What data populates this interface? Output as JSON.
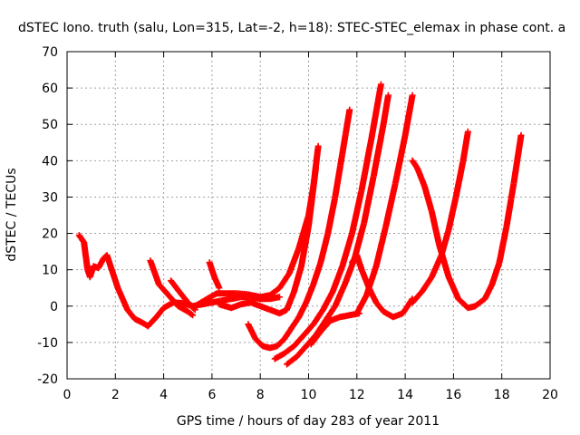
{
  "chart_data": {
    "type": "scatter",
    "title": "dSTEC Iono. truth (salu, Lon=315, Lat=-2, h=18): STEC-STEC_elemax in phase cont. a",
    "xlabel": "GPS time / hours of day 283 of year 2011",
    "ylabel": "dSTEC  / TECUs",
    "xlim": [
      0,
      20
    ],
    "ylim": [
      -20,
      70
    ],
    "xticks": [
      0,
      2,
      4,
      6,
      8,
      10,
      12,
      14,
      16,
      18,
      20
    ],
    "yticks": [
      -20,
      -10,
      0,
      10,
      20,
      30,
      40,
      50,
      60,
      70
    ],
    "grid": true,
    "marker": "plus",
    "color": "#ff0000",
    "series": [
      {
        "x": [
          0.5,
          0.7,
          0.85,
          0.95,
          1.1,
          1.3,
          1.5,
          1.65,
          1.8,
          2.1,
          2.5,
          2.8,
          3.1,
          3.35
        ],
        "y": [
          19.5,
          17.5,
          10,
          8,
          11,
          10.5,
          13,
          14,
          11,
          5,
          -1,
          -3.5,
          -4.5,
          -5.5
        ]
      },
      {
        "x": [
          3.35,
          3.7,
          4.0,
          4.4,
          4.8,
          5.2,
          5.6,
          6.0,
          6.4,
          6.8,
          7.2,
          7.6,
          8.0,
          8.4,
          8.8
        ],
        "y": [
          -5.5,
          -3,
          -0.5,
          1,
          0.8,
          0,
          0.5,
          1,
          1.5,
          2,
          2.5,
          2.5,
          2,
          2,
          2.5
        ]
      },
      {
        "x": [
          3.45,
          3.8,
          4.2,
          4.6,
          5.0,
          5.2
        ],
        "y": [
          12.5,
          6,
          3,
          0,
          -1.5,
          -2.5
        ]
      },
      {
        "x": [
          4.3,
          4.7,
          5.0,
          5.3
        ],
        "y": [
          7,
          3.5,
          1,
          -1
        ]
      },
      {
        "x": [
          5.9,
          6.1,
          6.3
        ],
        "y": [
          12,
          8,
          5
        ]
      },
      {
        "x": [
          5.3,
          5.8,
          6.2,
          6.6,
          7.0,
          7.5,
          8.0,
          8.4,
          8.8,
          9.2,
          9.6,
          10.0,
          10.2,
          10.4
        ],
        "y": [
          0,
          2,
          3.5,
          3.5,
          3.5,
          3.2,
          2.5,
          3,
          5,
          9,
          16,
          25,
          33,
          44
        ]
      },
      {
        "x": [
          6.3,
          6.8,
          7.2,
          7.6,
          8.0,
          8.4,
          8.8,
          9.1,
          9.4,
          9.7,
          10.0,
          10.3
        ],
        "y": [
          0.5,
          -0.5,
          0.5,
          1,
          0,
          -1,
          -2,
          -1,
          4,
          11,
          22,
          38
        ]
      },
      {
        "x": [
          7.5,
          7.8,
          8.1,
          8.4,
          8.7,
          9.0,
          9.3,
          9.6,
          9.9,
          10.2,
          10.5,
          10.8,
          11.1,
          11.4,
          11.7
        ],
        "y": [
          -5,
          -9,
          -11,
          -11.5,
          -11,
          -9,
          -6,
          -3,
          1,
          6,
          12,
          20,
          30,
          42,
          54
        ]
      },
      {
        "x": [
          8.6,
          9.0,
          9.4,
          9.8,
          10.2,
          10.6,
          11.0,
          11.4,
          11.8,
          12.2,
          12.6,
          13.0
        ],
        "y": [
          -14.5,
          -13,
          -11,
          -8,
          -5,
          -1,
          4,
          11,
          20,
          32,
          46,
          61
        ]
      },
      {
        "x": [
          9.1,
          9.5,
          9.9,
          10.3,
          10.7,
          11.1,
          11.5,
          11.9,
          12.3,
          12.7,
          13.1,
          13.3
        ],
        "y": [
          -16,
          -14,
          -11,
          -8,
          -4,
          0,
          6,
          13,
          23,
          36,
          50,
          58
        ]
      },
      {
        "x": [
          10.1,
          10.5,
          10.9,
          11.3,
          11.7,
          12.1
        ],
        "y": [
          -10.5,
          -7,
          -4,
          -3,
          -2.5,
          -2
        ]
      },
      {
        "x": [
          11.8,
          12.0,
          12.2,
          12.5,
          12.8,
          13.1,
          13.5,
          13.9,
          14.3
        ],
        "y": [
          12,
          14,
          10,
          5,
          1,
          -1.5,
          -3,
          -2,
          2
        ]
      },
      {
        "x": [
          12.0,
          12.4,
          12.8,
          13.2,
          13.6,
          14.0,
          14.3
        ],
        "y": [
          -2,
          3,
          11,
          22,
          34,
          47,
          58
        ]
      },
      {
        "x": [
          14.3,
          14.5,
          14.8,
          15.1,
          15.4,
          15.8,
          16.2,
          16.6,
          16.9
        ],
        "y": [
          40,
          38,
          33,
          26,
          17,
          8,
          2,
          -0.5,
          0
        ]
      },
      {
        "x": [
          14.3,
          14.7,
          15.1,
          15.5,
          15.8,
          16.1,
          16.4,
          16.6
        ],
        "y": [
          1,
          4,
          8,
          14,
          21,
          30,
          40,
          48
        ]
      },
      {
        "x": [
          16.9,
          17.3,
          17.6,
          17.9,
          18.2,
          18.5,
          18.8
        ],
        "y": [
          0,
          2,
          6,
          12,
          22,
          34,
          47
        ]
      }
    ]
  }
}
